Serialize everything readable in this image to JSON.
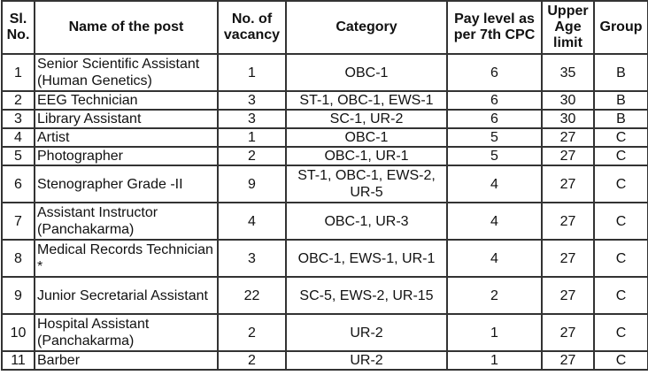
{
  "headers": [
    "Sl. No.",
    "Name of the post",
    "No. of vacancy",
    "Category",
    "Pay level as per 7th CPC",
    "Upper Age limit",
    "Group"
  ],
  "rows": [
    {
      "sl": "1",
      "name": "Senior Scientific Assistant (Human Genetics)",
      "vacancy": "1",
      "category": "OBC-1",
      "pay_level": "6",
      "age": "35",
      "group": "B",
      "tall": true
    },
    {
      "sl": "2",
      "name": "EEG Technician",
      "vacancy": "3",
      "category": "ST-1, OBC-1, EWS-1",
      "pay_level": "6",
      "age": "30",
      "group": "B",
      "tall": false
    },
    {
      "sl": "3",
      "name": "Library Assistant",
      "vacancy": "3",
      "category": "SC-1, UR-2",
      "pay_level": "6",
      "age": "30",
      "group": "B",
      "tall": false
    },
    {
      "sl": "4",
      "name": "Artist",
      "vacancy": "1",
      "category": "OBC-1",
      "pay_level": "5",
      "age": "27",
      "group": "C",
      "tall": false
    },
    {
      "sl": "5",
      "name": "Photographer",
      "vacancy": "2",
      "category": "OBC-1, UR-1",
      "pay_level": "5",
      "age": "27",
      "group": "C",
      "tall": false
    },
    {
      "sl": "6",
      "name": "Stenographer Grade -II",
      "vacancy": "9",
      "category": "ST-1, OBC-1, EWS-2, UR-5",
      "pay_level": "4",
      "age": "27",
      "group": "C",
      "tall": true
    },
    {
      "sl": "7",
      "name": "Assistant Instructor (Panchakarma)",
      "vacancy": "4",
      "category": "OBC-1, UR-3",
      "pay_level": "4",
      "age": "27",
      "group": "C",
      "tall": true
    },
    {
      "sl": "8",
      "name": "Medical Records Technician *",
      "vacancy": "3",
      "category": "OBC-1, EWS-1, UR-1",
      "pay_level": "4",
      "age": "27",
      "group": "C",
      "tall": true
    },
    {
      "sl": "9",
      "name": "Junior Secretarial Assistant",
      "vacancy": "22",
      "category": "SC-5, EWS-2, UR-15",
      "pay_level": "2",
      "age": "27",
      "group": "C",
      "tall": true
    },
    {
      "sl": "10",
      "name": "Hospital Assistant (Panchakarma)",
      "vacancy": "2",
      "category": "UR-2",
      "pay_level": "1",
      "age": "27",
      "group": "C",
      "tall": true
    },
    {
      "sl": "11",
      "name": "Barber",
      "vacancy": "2",
      "category": "UR-2",
      "pay_level": "1",
      "age": "27",
      "group": "C",
      "tall": false
    }
  ]
}
